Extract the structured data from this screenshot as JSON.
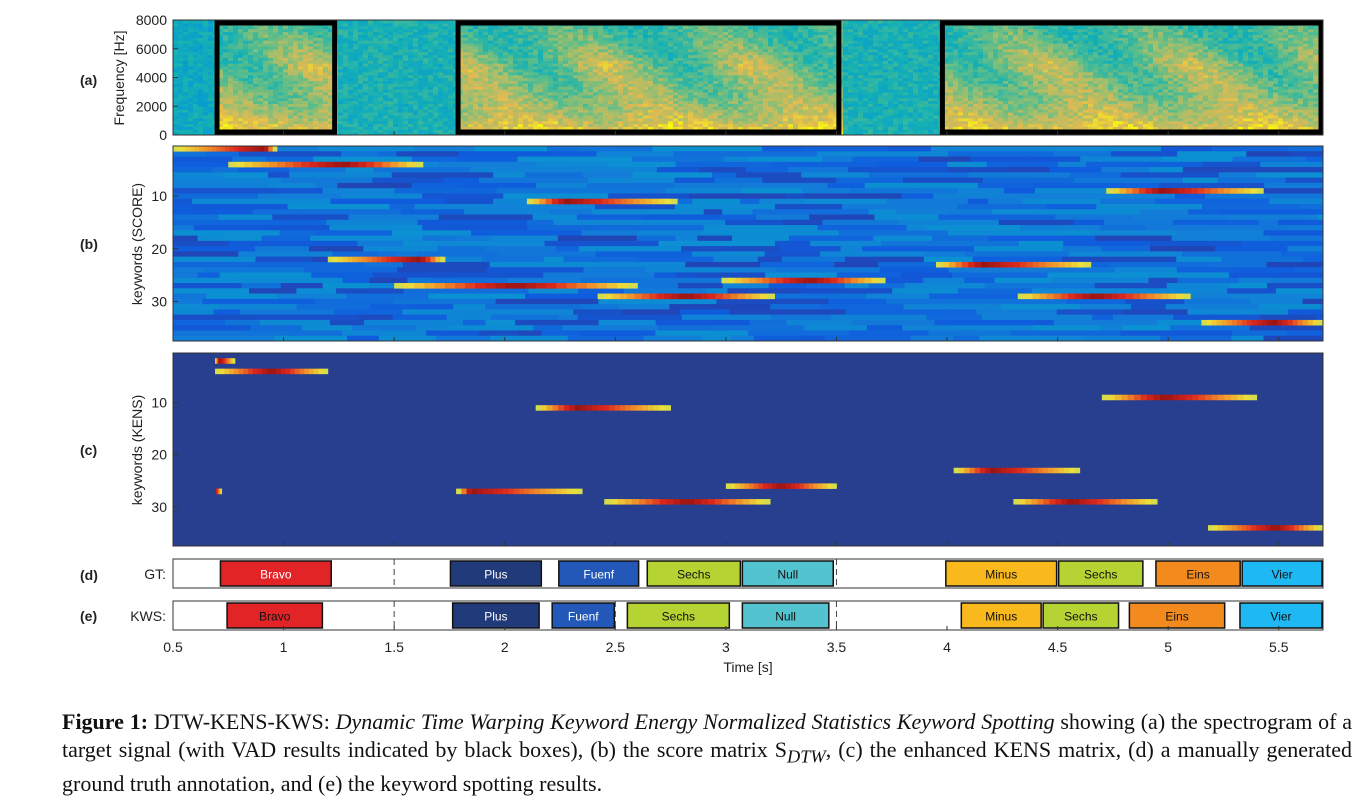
{
  "chart_data": {
    "type": "heatmap",
    "time_axis": {
      "label": "Time [s]",
      "range": [
        0.5,
        5.7
      ],
      "ticks": [
        0.5,
        1,
        1.5,
        2,
        2.5,
        3,
        3.5,
        4,
        4.5,
        5,
        5.5
      ],
      "tick_labels": [
        "0.5",
        "1",
        "1.5",
        "2",
        "2.5",
        "3",
        "3.5",
        "4",
        "4.5",
        "5",
        "5.5"
      ]
    },
    "panels": [
      {
        "id": "a",
        "tag": "(a)",
        "type": "spectrogram",
        "ylabel": "Frequency [Hz]",
        "yrange": [
          0,
          8000
        ],
        "yticks": [
          0,
          2000,
          4000,
          6000,
          8000
        ],
        "ytick_labels": [
          "0",
          "2000",
          "4000",
          "6000",
          "8000"
        ],
        "vad_boxes": [
          [
            0.69,
            1.24
          ],
          [
            1.78,
            3.52
          ],
          [
            3.97,
            5.7
          ]
        ],
        "colormap": "parula"
      },
      {
        "id": "b",
        "tag": "(b)",
        "type": "heatmap",
        "ylabel": "keywords (SCORE)",
        "yrange": [
          0.5,
          37.5
        ],
        "yticks": [
          10,
          20,
          30
        ],
        "ytick_labels": [
          "10",
          "20",
          "30"
        ],
        "strong_rows": [
          {
            "row": 4,
            "t0": 0.75,
            "t1": 1.63,
            "peak": 0.6
          },
          {
            "row": 11,
            "t0": 2.1,
            "t1": 2.78,
            "peak": 0.25
          },
          {
            "row": 9,
            "t0": 4.72,
            "t1": 5.43,
            "peak": 0.35
          },
          {
            "row": 23,
            "t0": 3.95,
            "t1": 4.65,
            "peak": 0.3
          },
          {
            "row": 26,
            "t0": 2.98,
            "t1": 3.72,
            "peak": 0.55
          },
          {
            "row": 27,
            "t0": 1.5,
            "t1": 2.6,
            "peak": 0.5
          },
          {
            "row": 29,
            "t0": 2.42,
            "t1": 3.22,
            "peak": 0.5
          },
          {
            "row": 29,
            "t0": 4.32,
            "t1": 5.1,
            "peak": 0.45
          },
          {
            "row": 34,
            "t0": 5.15,
            "t1": 5.7,
            "peak": 0.6
          },
          {
            "row": 22,
            "t0": 1.2,
            "t1": 1.73,
            "peak": 0.8
          },
          {
            "row": 1,
            "t0": 0.5,
            "t1": 0.97,
            "peak": 0.9
          }
        ],
        "colormap": "parula"
      },
      {
        "id": "c",
        "tag": "(c)",
        "type": "heatmap",
        "ylabel": "keywords (KENS)",
        "yrange": [
          0.5,
          37.5
        ],
        "yticks": [
          10,
          20,
          30
        ],
        "ytick_labels": [
          "10",
          "20",
          "30"
        ],
        "detections": [
          {
            "row": 2,
            "t0": 0.69,
            "t1": 0.78,
            "peak": 0.2
          },
          {
            "row": 4,
            "t0": 0.69,
            "t1": 1.2,
            "peak": 0.5
          },
          {
            "row": 11,
            "t0": 2.14,
            "t1": 2.75,
            "peak": 0.3
          },
          {
            "row": 9,
            "t0": 4.7,
            "t1": 5.4,
            "peak": 0.4
          },
          {
            "row": 23,
            "t0": 4.03,
            "t1": 4.6,
            "peak": 0.3
          },
          {
            "row": 26,
            "t0": 3.0,
            "t1": 3.5,
            "peak": 0.5
          },
          {
            "row": 27,
            "t0": 1.78,
            "t1": 2.35,
            "peak": 0.1
          },
          {
            "row": 27,
            "t0": 0.69,
            "t1": 0.72,
            "peak": 0.0
          },
          {
            "row": 29,
            "t0": 2.45,
            "t1": 3.2,
            "peak": 0.5
          },
          {
            "row": 29,
            "t0": 4.3,
            "t1": 4.95,
            "peak": 0.4
          },
          {
            "row": 34,
            "t0": 5.18,
            "t1": 5.7,
            "peak": 0.6
          }
        ],
        "colormap": "parula"
      },
      {
        "id": "d",
        "tag": "(d)",
        "row_label": "GT:",
        "type": "segments",
        "dashed_lines": [
          1.5,
          3.5
        ],
        "segments": [
          {
            "label": "Bravo",
            "t0": 0.71,
            "t1": 1.22,
            "color": "#e32426",
            "text_color": "#ffffff"
          },
          {
            "label": "Plus",
            "t0": 1.75,
            "t1": 2.17,
            "color": "#213a7a",
            "text_color": "#ffffff"
          },
          {
            "label": "Fuenf",
            "t0": 2.24,
            "t1": 2.61,
            "color": "#2458b8",
            "text_color": "#ffffff"
          },
          {
            "label": "Sechs",
            "t0": 2.64,
            "t1": 3.07,
            "color": "#b5d333",
            "text_color": "#111111"
          },
          {
            "label": "Null",
            "t0": 3.07,
            "t1": 3.49,
            "color": "#52c3cf",
            "text_color": "#111111"
          },
          {
            "label": "Minus",
            "t0": 3.99,
            "t1": 4.5,
            "color": "#f9b81c",
            "text_color": "#111111"
          },
          {
            "label": "Sechs",
            "t0": 4.5,
            "t1": 4.89,
            "color": "#b5d333",
            "text_color": "#111111"
          },
          {
            "label": "Eins",
            "t0": 4.94,
            "t1": 5.33,
            "color": "#f28a1e",
            "text_color": "#111111"
          },
          {
            "label": "Vier",
            "t0": 5.33,
            "t1": 5.7,
            "color": "#1eb8f2",
            "text_color": "#111111"
          }
        ]
      },
      {
        "id": "e",
        "tag": "(e)",
        "row_label": "KWS:",
        "type": "segments",
        "dashed_lines": [
          1.5,
          2.5,
          3.5
        ],
        "segments": [
          {
            "label": "Bravo",
            "t0": 0.74,
            "t1": 1.18,
            "color": "#e32426",
            "text_color": "#111111"
          },
          {
            "label": "Plus",
            "t0": 1.76,
            "t1": 2.16,
            "color": "#213a7a",
            "text_color": "#ffffff"
          },
          {
            "label": "Fuenf",
            "t0": 2.21,
            "t1": 2.5,
            "color": "#2458b8",
            "text_color": "#ffffff"
          },
          {
            "label": "Sechs",
            "t0": 2.55,
            "t1": 3.02,
            "color": "#b5d333",
            "text_color": "#111111"
          },
          {
            "label": "Null",
            "t0": 3.07,
            "t1": 3.47,
            "color": "#52c3cf",
            "text_color": "#111111"
          },
          {
            "label": "Minus",
            "t0": 4.06,
            "t1": 4.43,
            "color": "#f9b81c",
            "text_color": "#111111"
          },
          {
            "label": "Sechs",
            "t0": 4.43,
            "t1": 4.78,
            "color": "#b5d333",
            "text_color": "#111111"
          },
          {
            "label": "Eins",
            "t0": 4.82,
            "t1": 5.26,
            "color": "#f28a1e",
            "text_color": "#111111"
          },
          {
            "label": "Vier",
            "t0": 5.32,
            "t1": 5.7,
            "color": "#1eb8f2",
            "text_color": "#111111"
          }
        ]
      }
    ]
  },
  "caption": {
    "lead": "Figure 1:",
    "name": " DTW-KENS-KWS: ",
    "expansion": "Dynamic Time Warping Keyword Energy Normalized Statistics Keyword Spotting",
    "rest": " showing (a) the spectrogram of a target signal (with VAD results indicated by black boxes), (b) the score matrix S",
    "subscript": "DTW",
    "tail": ", (c) the enhanced KENS matrix, (d) a manually generated ground truth annotation, and (e) the keyword spotting results."
  },
  "colors": {
    "parula_low": "#352a87",
    "parula_mid": "#14b4c6",
    "parula_high": "#f9fb0e",
    "hot_red": "#d9201a"
  }
}
